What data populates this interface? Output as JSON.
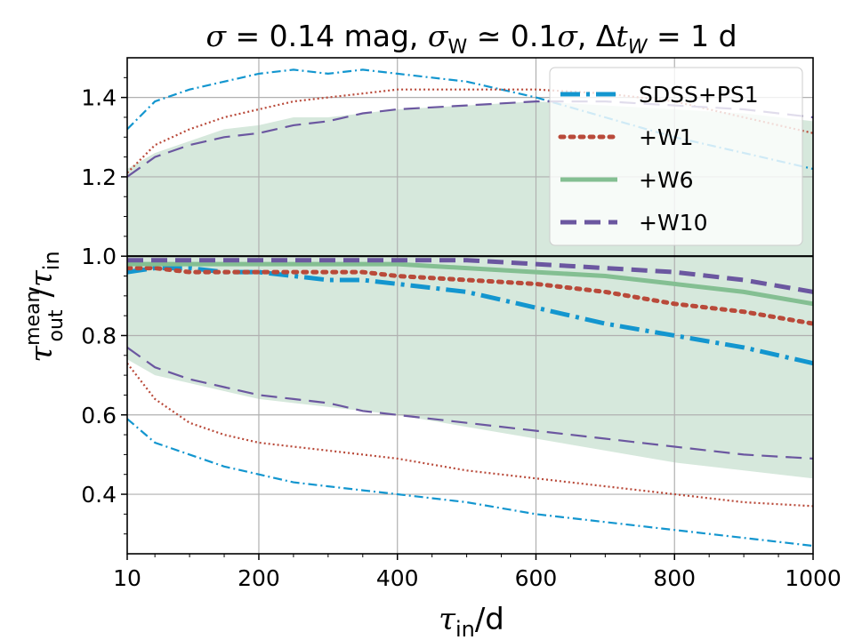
{
  "chart_data": {
    "type": "line",
    "title": {
      "sigma_sym": "σ",
      "sigma_val": " = 0.14 mag, ",
      "sigmaW_sym": "σ",
      "sigmaW_sub": "W",
      "sigmaW_rel": " ≃ 0.1",
      "sigmaW_sym2": "σ",
      "dt_pre": ", Δ",
      "dt_sym": "t",
      "dt_sub": "W",
      "dt_val": " = 1 d"
    },
    "xlabel": {
      "main": "τ",
      "sub": "in",
      "rest": "/d"
    },
    "ylabel": {
      "main": "τ",
      "sup": "mean",
      "sub": "out",
      "slash": "/",
      "main2": "τ",
      "sub2": "in"
    },
    "xlim": [
      10,
      1000
    ],
    "ylim": [
      0.25,
      1.5
    ],
    "xticks": [
      10,
      200,
      400,
      600,
      800,
      1000
    ],
    "xtick_labels": [
      "10",
      "200",
      "400",
      "600",
      "800",
      "1000"
    ],
    "yticks": [
      0.4,
      0.6,
      0.8,
      1.0,
      1.2,
      1.4
    ],
    "ytick_labels": [
      "0.4",
      "0.6",
      "0.8",
      "1.0",
      "1.2",
      "1.4"
    ],
    "grid": true,
    "reference_line_y": 1.0,
    "legend_position": "top-right",
    "colors": {
      "sdss": "#1396cf",
      "w1": "#b94a3a",
      "w6": "#84bf92",
      "w10": "#6b57a0",
      "band": "#d6e8dc",
      "grid": "#b0b0b0"
    },
    "band": {
      "name": "+W6 spread",
      "x": [
        10,
        50,
        100,
        150,
        200,
        250,
        300,
        350,
        400,
        500,
        600,
        700,
        800,
        900,
        1000
      ],
      "upper": [
        1.22,
        1.26,
        1.29,
        1.32,
        1.33,
        1.35,
        1.35,
        1.36,
        1.37,
        1.38,
        1.39,
        1.38,
        1.37,
        1.36,
        1.34
      ],
      "lower": [
        0.74,
        0.7,
        0.68,
        0.66,
        0.64,
        0.63,
        0.62,
        0.61,
        0.6,
        0.57,
        0.54,
        0.51,
        0.48,
        0.46,
        0.44
      ]
    },
    "series": [
      {
        "name": "SDSS+PS1",
        "color_key": "sdss",
        "style": "dashdot",
        "x": [
          10,
          50,
          100,
          150,
          200,
          250,
          300,
          350,
          400,
          500,
          600,
          700,
          800,
          900,
          1000
        ],
        "mean": [
          0.96,
          0.97,
          0.97,
          0.96,
          0.96,
          0.95,
          0.94,
          0.94,
          0.93,
          0.91,
          0.87,
          0.83,
          0.8,
          0.77,
          0.73
        ],
        "upper": [
          1.32,
          1.39,
          1.42,
          1.44,
          1.46,
          1.47,
          1.46,
          1.47,
          1.46,
          1.44,
          1.4,
          1.35,
          1.3,
          1.26,
          1.22
        ],
        "lower": [
          0.59,
          0.53,
          0.5,
          0.47,
          0.45,
          0.43,
          0.42,
          0.41,
          0.4,
          0.38,
          0.35,
          0.33,
          0.31,
          0.29,
          0.27
        ]
      },
      {
        "name": "+W1",
        "color_key": "w1",
        "style": "dotted",
        "x": [
          10,
          50,
          100,
          150,
          200,
          250,
          300,
          350,
          400,
          500,
          600,
          700,
          800,
          900,
          1000
        ],
        "mean": [
          0.97,
          0.97,
          0.96,
          0.96,
          0.96,
          0.96,
          0.96,
          0.96,
          0.95,
          0.94,
          0.93,
          0.91,
          0.88,
          0.86,
          0.83
        ],
        "upper": [
          1.21,
          1.28,
          1.32,
          1.35,
          1.37,
          1.39,
          1.4,
          1.41,
          1.42,
          1.42,
          1.42,
          1.41,
          1.39,
          1.35,
          1.31
        ],
        "lower": [
          0.73,
          0.64,
          0.58,
          0.55,
          0.53,
          0.52,
          0.51,
          0.5,
          0.49,
          0.46,
          0.44,
          0.42,
          0.4,
          0.38,
          0.37
        ]
      },
      {
        "name": "+W6",
        "color_key": "w6",
        "style": "solid",
        "x": [
          10,
          50,
          100,
          150,
          200,
          250,
          300,
          350,
          400,
          500,
          600,
          700,
          800,
          900,
          1000
        ],
        "mean": [
          0.98,
          0.98,
          0.98,
          0.98,
          0.98,
          0.98,
          0.98,
          0.98,
          0.98,
          0.97,
          0.96,
          0.95,
          0.93,
          0.91,
          0.88
        ]
      },
      {
        "name": "+W10",
        "color_key": "w10",
        "style": "dashed",
        "x": [
          10,
          50,
          100,
          150,
          200,
          250,
          300,
          350,
          400,
          500,
          600,
          700,
          800,
          900,
          1000
        ],
        "mean": [
          0.99,
          0.99,
          0.99,
          0.99,
          0.99,
          0.99,
          0.99,
          0.99,
          0.99,
          0.99,
          0.98,
          0.97,
          0.96,
          0.94,
          0.91
        ],
        "upper": [
          1.2,
          1.25,
          1.28,
          1.3,
          1.31,
          1.33,
          1.34,
          1.36,
          1.37,
          1.38,
          1.39,
          1.39,
          1.38,
          1.37,
          1.35
        ],
        "lower": [
          0.77,
          0.72,
          0.69,
          0.67,
          0.65,
          0.64,
          0.63,
          0.61,
          0.6,
          0.58,
          0.56,
          0.54,
          0.52,
          0.5,
          0.49
        ]
      }
    ]
  }
}
